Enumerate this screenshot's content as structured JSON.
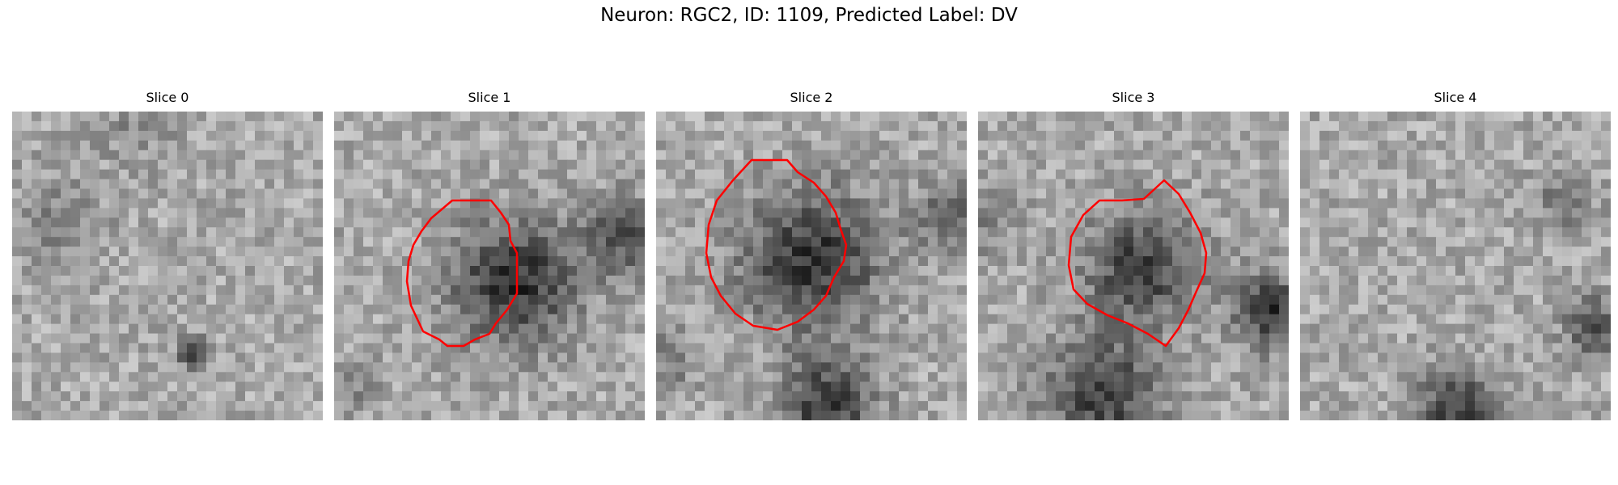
{
  "figure": {
    "title": "Neuron: RGC2, ID: 1109, Predicted Label: DV",
    "contour_color": "#ff0000"
  },
  "slices": [
    {
      "title": "Slice 0",
      "has_contour": false
    },
    {
      "title": "Slice 1",
      "has_contour": true
    },
    {
      "title": "Slice 2",
      "has_contour": true
    },
    {
      "title": "Slice 3",
      "has_contour": true
    },
    {
      "title": "Slice 4",
      "has_contour": false
    }
  ]
}
